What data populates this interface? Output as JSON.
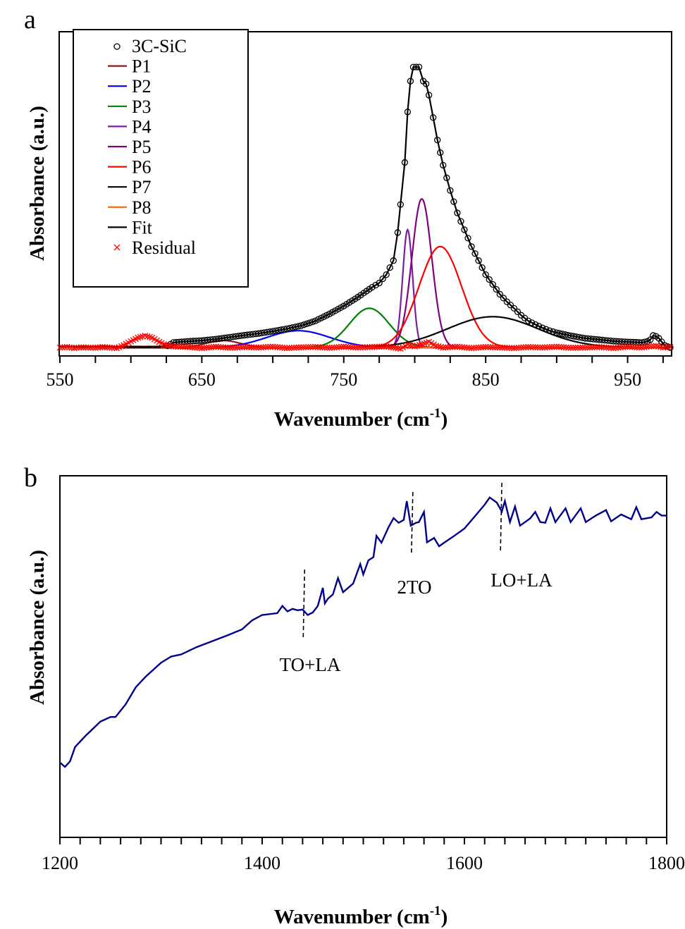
{
  "chart_data": [
    {
      "panel": "a",
      "type": "line",
      "xlabel": "Wavenumber (cm",
      "xlabel_sup": "-1",
      "xlabel_end": ")",
      "ylabel": "Absorbance (a.u.)",
      "xlim": [
        550,
        981
      ],
      "ylim": [
        -0.03,
        1.126
      ],
      "x_ticks": [
        550,
        650,
        750,
        850,
        950
      ],
      "x_minor_step": 25,
      "legend_position": "top-left",
      "grid": false,
      "data_series": {
        "name": "3C-SiC",
        "color": "#000000",
        "marker": "open-circle",
        "x": [
          550,
          560,
          570,
          580,
          590,
          600,
          610,
          620,
          626,
          630,
          640,
          650,
          660,
          670,
          680,
          690,
          700,
          710,
          720,
          730,
          740,
          750,
          760,
          770,
          775,
          780,
          785,
          788,
          790,
          793,
          795,
          797,
          799,
          801,
          803,
          806,
          808,
          810,
          813,
          816,
          820,
          825,
          830,
          835,
          840,
          845,
          850,
          855,
          860,
          865,
          870,
          875,
          880,
          885,
          890,
          895,
          900,
          910,
          920,
          930,
          940,
          950,
          960,
          964,
          966,
          968,
          970,
          972,
          976,
          980
        ],
        "y": [
          0.003,
          0.004,
          0.003,
          0.005,
          0.003,
          0.004,
          0.003,
          0.004,
          0.006,
          0.018,
          0.022,
          0.025,
          0.03,
          0.037,
          0.044,
          0.05,
          0.058,
          0.067,
          0.078,
          0.095,
          0.12,
          0.148,
          0.18,
          0.215,
          0.23,
          0.26,
          0.31,
          0.41,
          0.51,
          0.66,
          0.84,
          0.95,
          1.0,
          1.0,
          1.0,
          0.95,
          0.94,
          0.9,
          0.82,
          0.74,
          0.65,
          0.56,
          0.48,
          0.42,
          0.36,
          0.31,
          0.26,
          0.225,
          0.19,
          0.163,
          0.14,
          0.115,
          0.095,
          0.082,
          0.07,
          0.06,
          0.053,
          0.042,
          0.033,
          0.028,
          0.023,
          0.02,
          0.018,
          0.022,
          0.028,
          0.043,
          0.04,
          0.033,
          0.008,
          0.0
        ]
      },
      "fit": {
        "name": "Fit",
        "color": "#000000"
      },
      "components": [
        {
          "name": "P1",
          "color": "#8B1A1A",
          "center": 665,
          "amplitude": 0.025,
          "sigma": 12
        },
        {
          "name": "P2",
          "color": "#0000FF",
          "center": 718,
          "amplitude": 0.06,
          "sigma": 22
        },
        {
          "name": "P3",
          "color": "#008000",
          "center": 768,
          "amplitude": 0.14,
          "sigma": 14
        },
        {
          "name": "P4",
          "color": "#7B1FA2",
          "center": 795,
          "amplitude": 0.42,
          "sigma": 3.5
        },
        {
          "name": "P5",
          "color": "#800080",
          "center": 805,
          "amplitude": 0.53,
          "sigma": 7
        },
        {
          "name": "P6",
          "color": "#FF0000",
          "center": 818,
          "amplitude": 0.36,
          "sigma": 15
        },
        {
          "name": "P7",
          "color": "#000000",
          "center": 855,
          "amplitude": 0.11,
          "sigma": 32
        },
        {
          "name": "P8",
          "color": "#FF6600",
          "center": 610,
          "amplitude": 0.004,
          "sigma": 15
        }
      ],
      "residual": {
        "name": "Residual",
        "color": "#FF0000",
        "marker": "x",
        "x": [
          550,
          555,
          560,
          565,
          570,
          575,
          580,
          585,
          590,
          595,
          600,
          605,
          610,
          615,
          620,
          625,
          630,
          640,
          650,
          660,
          670,
          680,
          690,
          700,
          710,
          720,
          730,
          740,
          750,
          760,
          770,
          780,
          790,
          795,
          800,
          805,
          810,
          815,
          820,
          830,
          840,
          850,
          860,
          870,
          880,
          890,
          900,
          910,
          920,
          930,
          940,
          950,
          960,
          965,
          970,
          975,
          980
        ],
        "y": [
          0.0,
          0.002,
          -0.002,
          0.001,
          0.0,
          -0.001,
          0.002,
          0.0,
          -0.002,
          0.008,
          0.022,
          0.035,
          0.042,
          0.035,
          0.02,
          0.008,
          0.004,
          0.002,
          -0.002,
          0.003,
          -0.001,
          0.002,
          0.0,
          0.003,
          -0.002,
          0.001,
          0.002,
          -0.001,
          0.003,
          0.0,
          0.002,
          0.004,
          -0.004,
          0.01,
          0.004,
          0.012,
          0.02,
          0.006,
          0.0,
          0.003,
          -0.002,
          0.002,
          0.0,
          -0.002,
          0.002,
          0.0,
          0.003,
          -0.001,
          0.0,
          0.002,
          -0.002,
          0.003,
          0.0,
          0.004,
          0.006,
          0.0,
          0.002
        ]
      }
    },
    {
      "panel": "b",
      "type": "line",
      "xlabel": "Wavenumber (cm",
      "xlabel_sup": "-1",
      "xlabel_end": ")",
      "ylabel": "Absorbance (a.u.)",
      "xlim": [
        1200,
        1800
      ],
      "ylim": [
        0,
        1
      ],
      "x_ticks": [
        1200,
        1400,
        1600,
        1800
      ],
      "x_minor_step": 20,
      "grid": false,
      "series": {
        "color": "#00008B",
        "x": [
          1200,
          1205,
          1210,
          1215,
          1225,
          1240,
          1250,
          1255,
          1265,
          1275,
          1285,
          1300,
          1310,
          1320,
          1335,
          1350,
          1365,
          1380,
          1390,
          1400,
          1415,
          1420,
          1425,
          1430,
          1435,
          1440,
          1445,
          1450,
          1455,
          1460,
          1462,
          1465,
          1470,
          1475,
          1480,
          1485,
          1490,
          1497,
          1500,
          1505,
          1510,
          1513,
          1518,
          1525,
          1530,
          1535,
          1540,
          1543,
          1547,
          1552,
          1555,
          1560,
          1563,
          1570,
          1575,
          1580,
          1590,
          1600,
          1610,
          1620,
          1625,
          1632,
          1637,
          1640,
          1645,
          1650,
          1655,
          1665,
          1670,
          1675,
          1680,
          1685,
          1690,
          1700,
          1705,
          1715,
          1720,
          1730,
          1740,
          1745,
          1755,
          1765,
          1770,
          1775,
          1785,
          1790,
          1795,
          1800
        ],
        "y": [
          0.207,
          0.195,
          0.21,
          0.25,
          0.28,
          0.32,
          0.333,
          0.333,
          0.368,
          0.415,
          0.445,
          0.483,
          0.5,
          0.506,
          0.526,
          0.542,
          0.558,
          0.575,
          0.6,
          0.615,
          0.62,
          0.64,
          0.625,
          0.632,
          0.628,
          0.63,
          0.615,
          0.622,
          0.64,
          0.69,
          0.647,
          0.66,
          0.672,
          0.717,
          0.678,
          0.69,
          0.702,
          0.756,
          0.727,
          0.766,
          0.775,
          0.834,
          0.815,
          0.858,
          0.883,
          0.87,
          0.878,
          0.93,
          0.862,
          0.87,
          0.872,
          0.9,
          0.816,
          0.828,
          0.805,
          0.815,
          0.834,
          0.854,
          0.887,
          0.92,
          0.94,
          0.926,
          0.901,
          0.93,
          0.872,
          0.915,
          0.862,
          0.882,
          0.9,
          0.872,
          0.87,
          0.91,
          0.872,
          0.91,
          0.872,
          0.91,
          0.872,
          0.89,
          0.905,
          0.874,
          0.893,
          0.88,
          0.913,
          0.88,
          0.885,
          0.9,
          0.89,
          0.89
        ]
      },
      "annotations": [
        {
          "text": "TO+LA",
          "x": 1442
        },
        {
          "text": "2TO",
          "x": 1549
        },
        {
          "text": "LO+LA",
          "x": 1637
        }
      ]
    }
  ]
}
